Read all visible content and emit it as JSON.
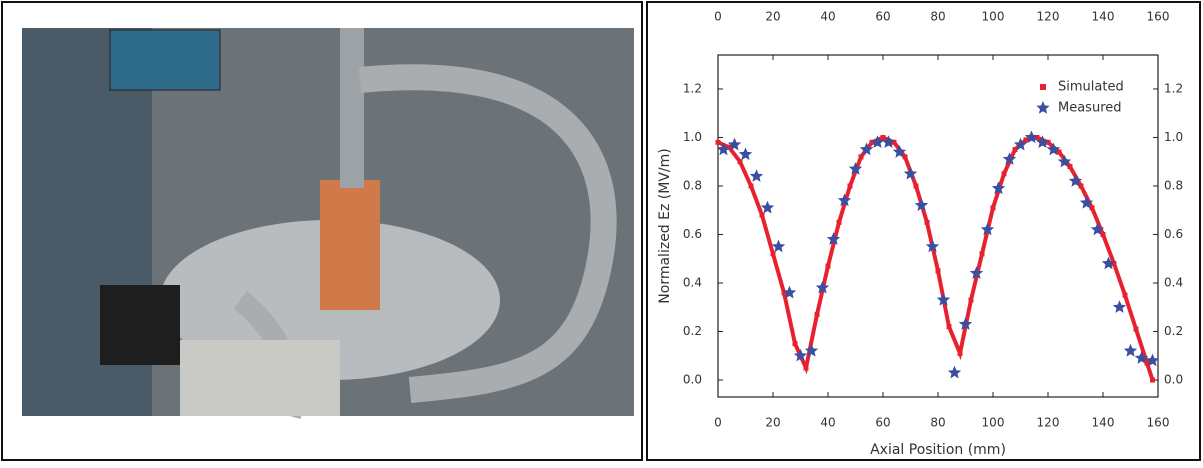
{
  "chart_data": {
    "type": "line",
    "xlabel": "Axial Position (mm)",
    "ylabel": "Normalized Ez (MV/m)",
    "xlim": [
      0,
      160
    ],
    "ylim": [
      -0.07,
      1.34
    ],
    "xticks": [
      0,
      20,
      40,
      60,
      80,
      100,
      120,
      140,
      160
    ],
    "yticks": [
      {
        "value": 0,
        "label": "0.0"
      },
      0.2,
      0.4,
      0.6,
      0.8,
      {
        "value": 1,
        "label": "1.0"
      },
      1.2
    ],
    "legend": "upper right",
    "series": [
      {
        "name": "Simulated",
        "color": "#e8212e",
        "marker": "square",
        "x": [
          0,
          4,
          8,
          12,
          16,
          20,
          24,
          28,
          32,
          36,
          40,
          44,
          48,
          52,
          56,
          60,
          64,
          68,
          72,
          76,
          80,
          84,
          88,
          92,
          96,
          100,
          104,
          108,
          112,
          116,
          120,
          124,
          128,
          132,
          136,
          140,
          144,
          148,
          152,
          156,
          158
        ],
        "values": [
          0.98,
          0.96,
          0.9,
          0.8,
          0.68,
          0.52,
          0.36,
          0.15,
          0.05,
          0.27,
          0.47,
          0.65,
          0.8,
          0.92,
          0.98,
          1.0,
          0.98,
          0.92,
          0.8,
          0.65,
          0.45,
          0.22,
          0.11,
          0.33,
          0.52,
          0.71,
          0.85,
          0.95,
          0.99,
          1.0,
          0.98,
          0.94,
          0.88,
          0.8,
          0.71,
          0.6,
          0.48,
          0.35,
          0.21,
          0.07,
          0.0
        ]
      },
      {
        "name": "Measured",
        "color": "#3b4fa0",
        "marker": "star",
        "x": [
          2,
          6,
          10,
          14,
          18,
          22,
          26,
          30,
          34,
          38,
          42,
          46,
          50,
          54,
          58,
          62,
          66,
          70,
          74,
          78,
          82,
          86,
          90,
          94,
          98,
          102,
          106,
          110,
          114,
          118,
          122,
          126,
          130,
          134,
          138,
          142,
          146,
          150,
          154,
          158
        ],
        "values": [
          0.95,
          0.97,
          0.93,
          0.84,
          0.71,
          0.55,
          0.36,
          0.1,
          0.12,
          0.38,
          0.58,
          0.74,
          0.87,
          0.95,
          0.98,
          0.98,
          0.94,
          0.85,
          0.72,
          0.55,
          0.33,
          0.03,
          0.23,
          0.44,
          0.62,
          0.79,
          0.91,
          0.97,
          1.0,
          0.98,
          0.95,
          0.9,
          0.82,
          0.73,
          0.62,
          0.48,
          0.3,
          0.12,
          0.09,
          0.08
        ]
      }
    ]
  }
}
